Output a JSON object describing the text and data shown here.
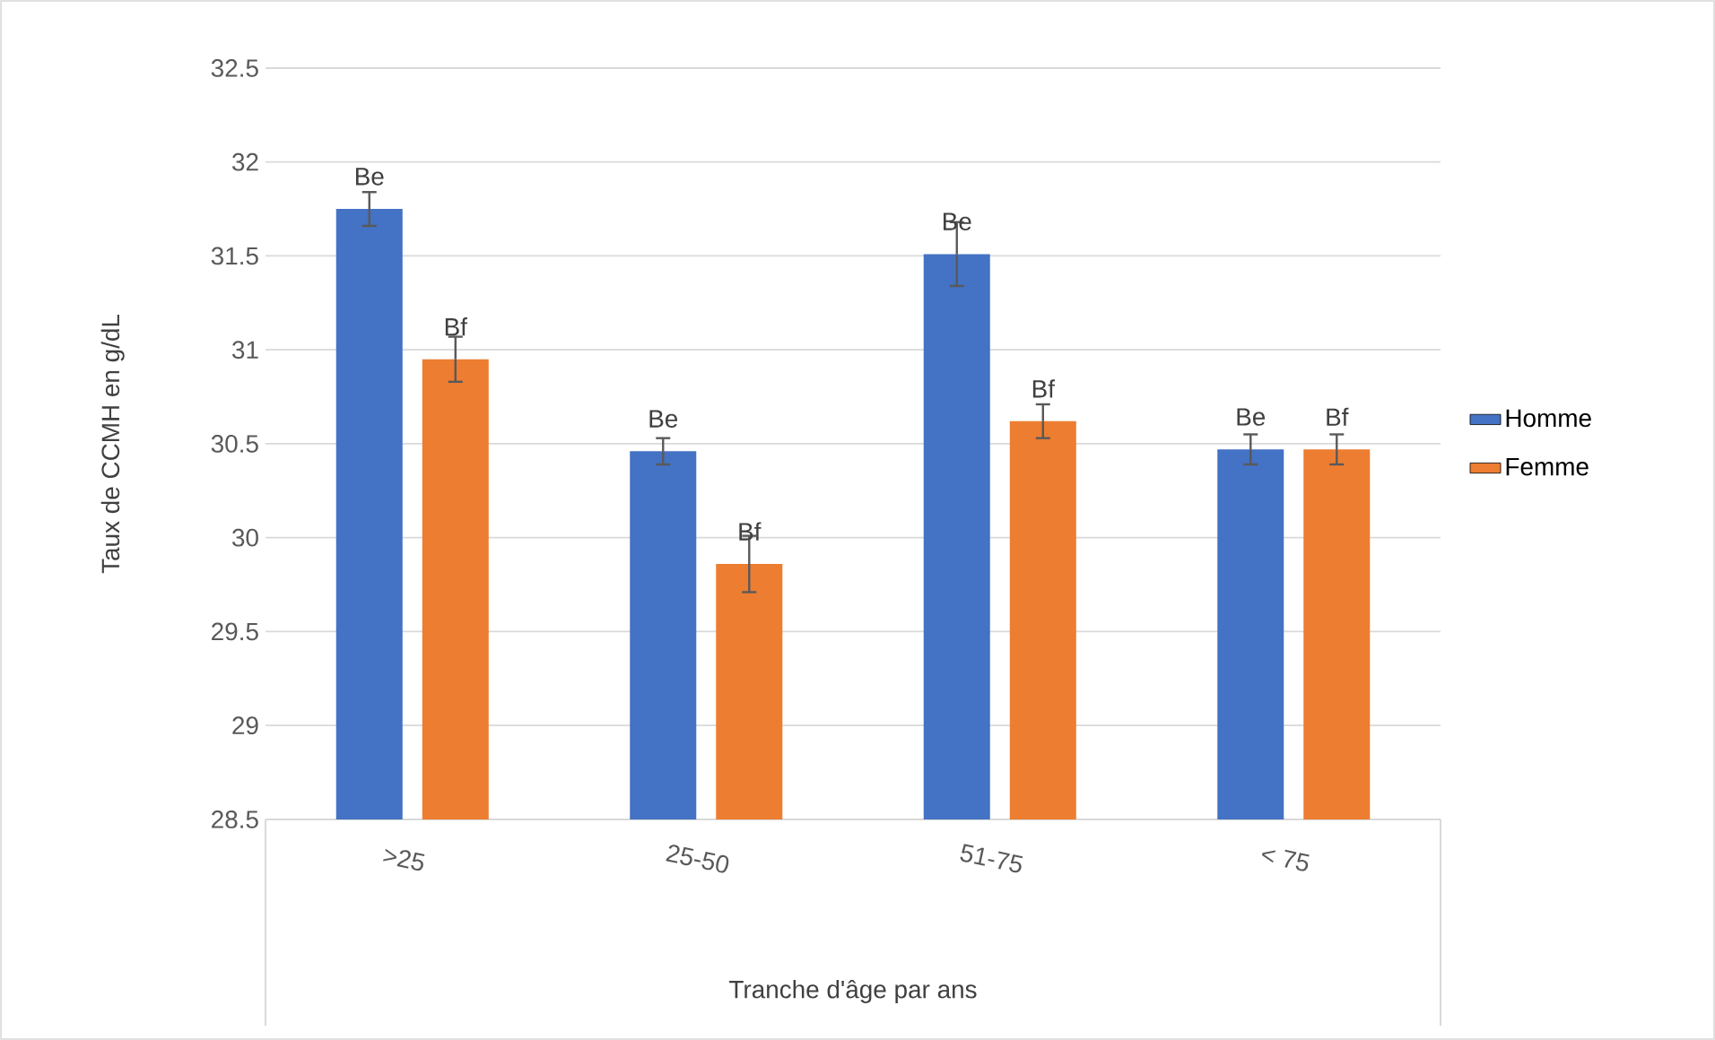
{
  "chart_data": {
    "type": "bar",
    "xlabel": "Tranche d'âge par ans",
    "ylabel": "Taux de CCMH en g/dL",
    "categories": [
      ">25",
      "25-50",
      "51-75",
      "< 75"
    ],
    "series": [
      {
        "name": "Homme",
        "color": "#4472c4",
        "values": [
          31.75,
          30.46,
          31.51,
          30.47
        ],
        "errors": [
          0.09,
          0.07,
          0.17,
          0.08
        ],
        "value_labels": [
          "Be",
          "Be",
          "Be",
          "Be"
        ]
      },
      {
        "name": "Femme",
        "color": "#ed7d31",
        "values": [
          30.95,
          29.86,
          30.62,
          30.47
        ],
        "errors": [
          0.12,
          0.15,
          0.09,
          0.08
        ],
        "value_labels": [
          "Bf",
          "Bf",
          "Bf",
          "Bf"
        ]
      }
    ],
    "ylim": [
      28.5,
      32.5
    ],
    "yticks": [
      28.5,
      29,
      29.5,
      30,
      30.5,
      31,
      31.5,
      32,
      32.5
    ],
    "grid": "y",
    "legend": "right"
  }
}
